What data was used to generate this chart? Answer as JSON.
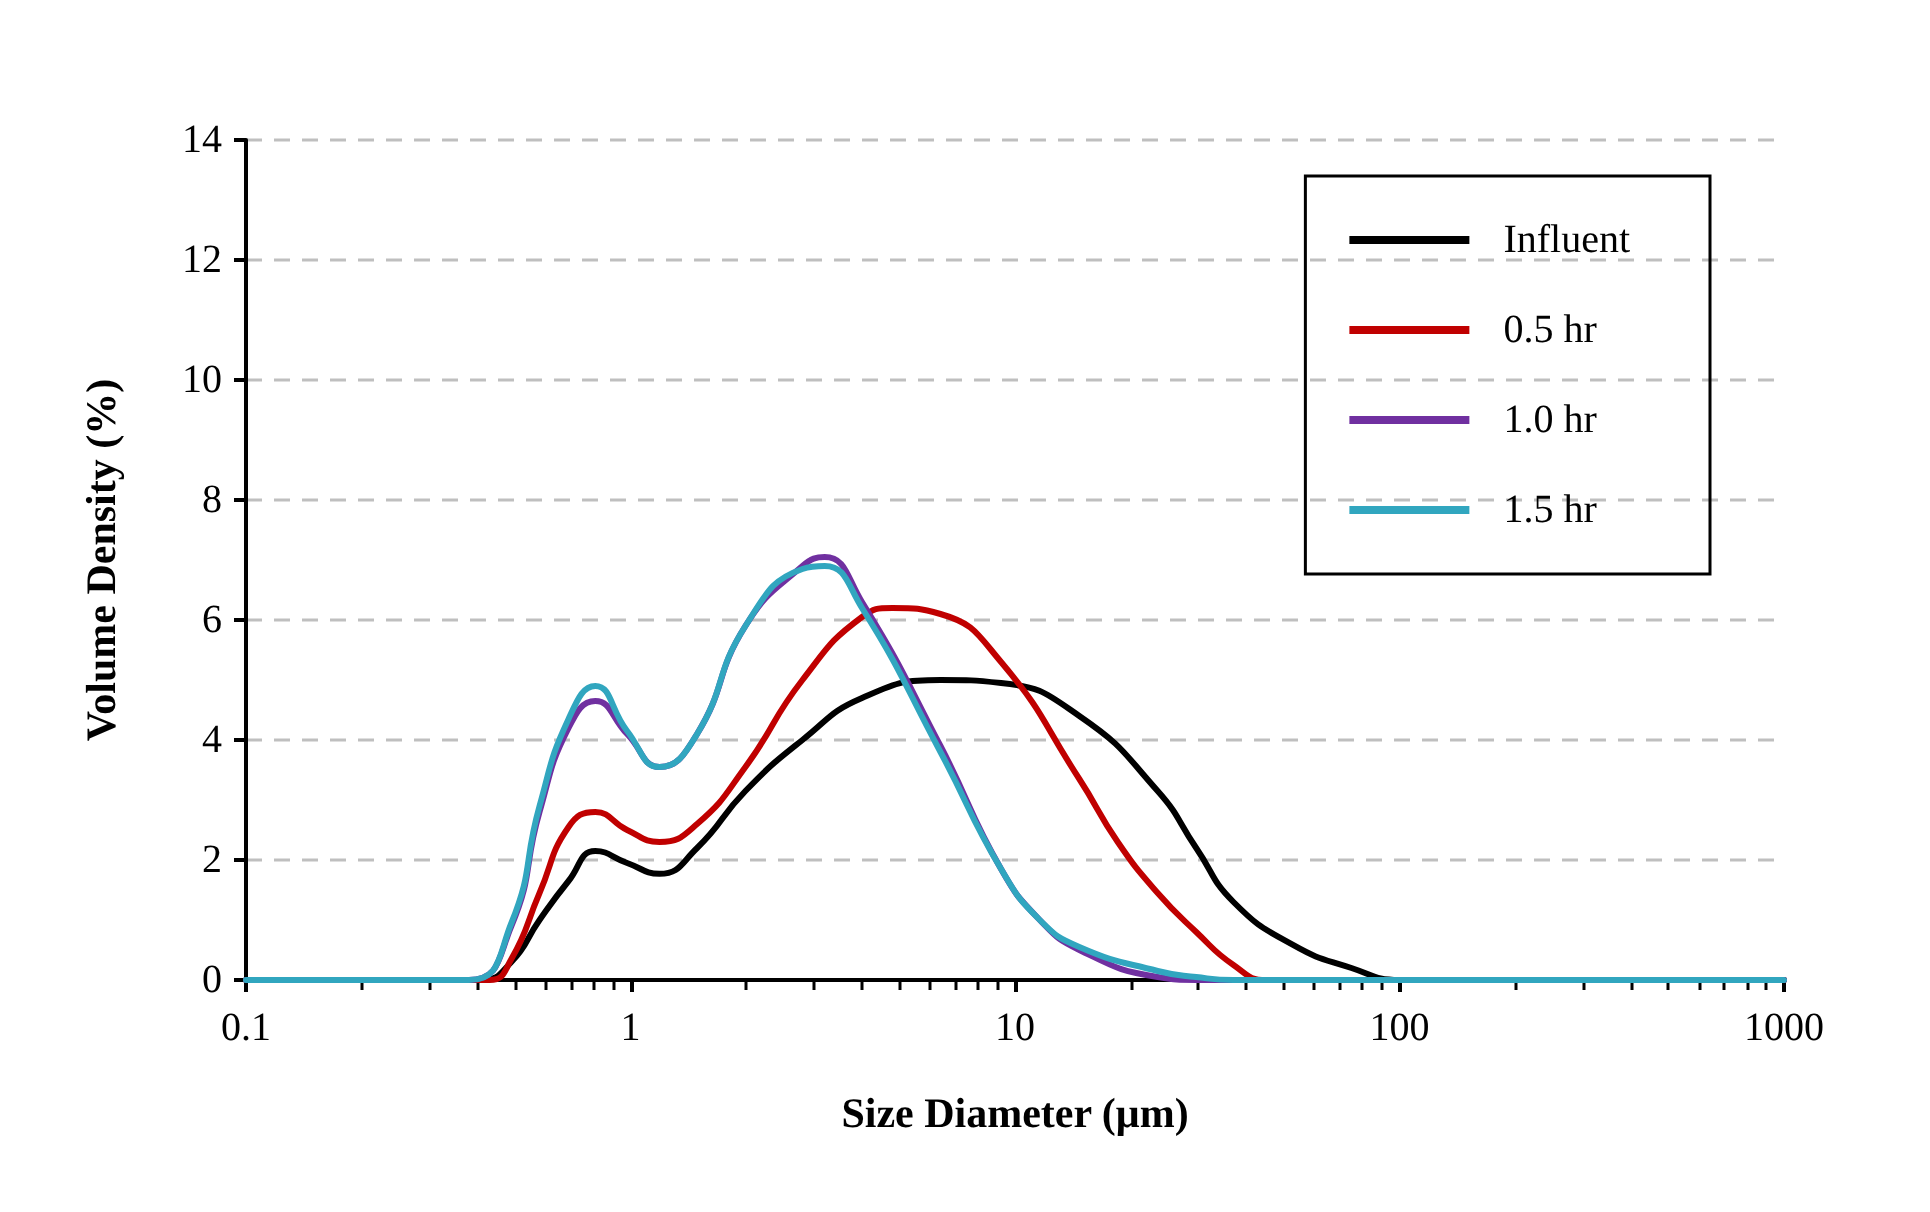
{
  "chart_data": {
    "type": "line",
    "xlabel": "Size Diameter (μm)",
    "ylabel": "Volume Density (%)",
    "log": "x",
    "xlim": [
      0.1,
      1000
    ],
    "xticks": [
      0.1,
      1,
      10,
      100,
      1000
    ],
    "ylim": [
      0,
      14
    ],
    "yticks": [
      0,
      2,
      4,
      6,
      8,
      10,
      12,
      14
    ],
    "grid": "y",
    "legend": "top right",
    "marker": "none",
    "line_style": "solid",
    "series": [
      {
        "name": "Influent",
        "color": "#000000",
        "x": [
          0.1,
          0.41,
          0.49,
          0.58,
          0.69,
          0.81,
          0.98,
          1.19,
          1.49,
          1.99,
          2.8,
          4.0,
          6.4,
          9.2,
          14.7,
          23.5,
          29.6,
          37,
          53,
          75,
          100,
          1000
        ],
        "values": [
          0,
          0,
          0.3,
          1.0,
          1.65,
          2.15,
          1.95,
          1.77,
          2.2,
          3.15,
          4.0,
          4.7,
          5.0,
          4.95,
          4.4,
          3.15,
          2.2,
          1.3,
          0.58,
          0.2,
          0,
          0
        ]
      },
      {
        "name": "0.5 hr",
        "color": "#c00000",
        "x": [
          0.1,
          0.43,
          0.49,
          0.58,
          0.69,
          0.81,
          0.98,
          1.19,
          1.49,
          1.99,
          2.8,
          4.0,
          4.8,
          6.4,
          9.2,
          14.7,
          18.5,
          23.5,
          29.6,
          37,
          45,
          1000
        ],
        "values": [
          0,
          0,
          0.35,
          1.45,
          2.55,
          2.8,
          2.5,
          2.3,
          2.6,
          3.55,
          5.0,
          6.05,
          6.2,
          6.1,
          5.3,
          3.35,
          2.3,
          1.45,
          0.8,
          0.25,
          0,
          0
        ]
      },
      {
        "name": "1.0 hr",
        "color": "#7030a0",
        "x": [
          0.1,
          0.38,
          0.49,
          0.58,
          0.69,
          0.81,
          0.98,
          1.19,
          1.49,
          1.99,
          2.8,
          3.2,
          4.0,
          6.4,
          9.2,
          11.6,
          14.7,
          23.5,
          29.6,
          1000
        ],
        "values": [
          0,
          0,
          0.9,
          2.8,
          4.2,
          4.65,
          4.1,
          3.55,
          4.1,
          5.9,
          6.9,
          7.05,
          6.3,
          3.9,
          1.85,
          1.0,
          0.5,
          0.05,
          0,
          0
        ]
      },
      {
        "name": "1.5 hr",
        "color": "#31a6bf",
        "x": [
          0.1,
          0.38,
          0.49,
          0.58,
          0.69,
          0.81,
          0.98,
          1.19,
          1.49,
          1.99,
          2.8,
          3.2,
          4.0,
          6.4,
          9.2,
          11.6,
          14.7,
          23.5,
          29.6,
          37,
          1000
        ],
        "values": [
          0,
          0,
          0.95,
          2.9,
          4.35,
          4.9,
          4.15,
          3.55,
          4.1,
          5.9,
          6.85,
          6.9,
          6.2,
          3.8,
          1.85,
          1.0,
          0.55,
          0.15,
          0.05,
          0,
          0
        ]
      }
    ]
  }
}
